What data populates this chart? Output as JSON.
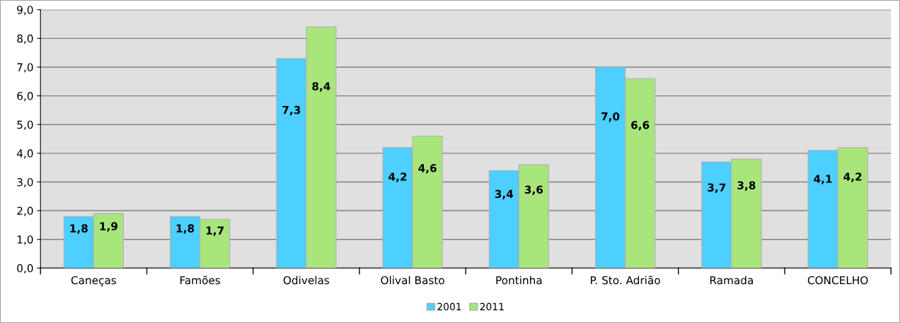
{
  "chart_data": {
    "type": "bar",
    "categories": [
      "Caneças",
      "Famões",
      "Odivelas",
      "Olival Basto",
      "Pontinha",
      "P. Sto. Adrião",
      "Ramada",
      "CONCELHO"
    ],
    "series": [
      {
        "name": "2001",
        "color": "#4dcfff",
        "values": [
          1.8,
          1.8,
          7.3,
          4.2,
          3.4,
          7.0,
          3.7,
          4.1
        ],
        "value_labels": [
          "1,8",
          "1,8",
          "7,3",
          "4,2",
          "3,4",
          "7,0",
          "3,7",
          "4,1"
        ]
      },
      {
        "name": "2011",
        "color": "#a8e67c",
        "values": [
          1.9,
          1.7,
          8.4,
          4.6,
          3.6,
          6.6,
          3.8,
          4.2
        ],
        "value_labels": [
          "1,9",
          "1,7",
          "8,4",
          "4,6",
          "3,6",
          "6,6",
          "3,8",
          "4,2"
        ]
      }
    ],
    "ylim": [
      0,
      9
    ],
    "yticks": [
      {
        "value": 0,
        "label": "0,0"
      },
      {
        "value": 1,
        "label": "1,0"
      },
      {
        "value": 2,
        "label": "2,0"
      },
      {
        "value": 3,
        "label": "3,0"
      },
      {
        "value": 4,
        "label": "4,0"
      },
      {
        "value": 5,
        "label": "5,0"
      },
      {
        "value": 6,
        "label": "6,0"
      },
      {
        "value": 7,
        "label": "7,0"
      },
      {
        "value": 8,
        "label": "8,0"
      },
      {
        "value": 9,
        "label": "9,0"
      }
    ],
    "grid": "y",
    "legend": "bottom"
  }
}
